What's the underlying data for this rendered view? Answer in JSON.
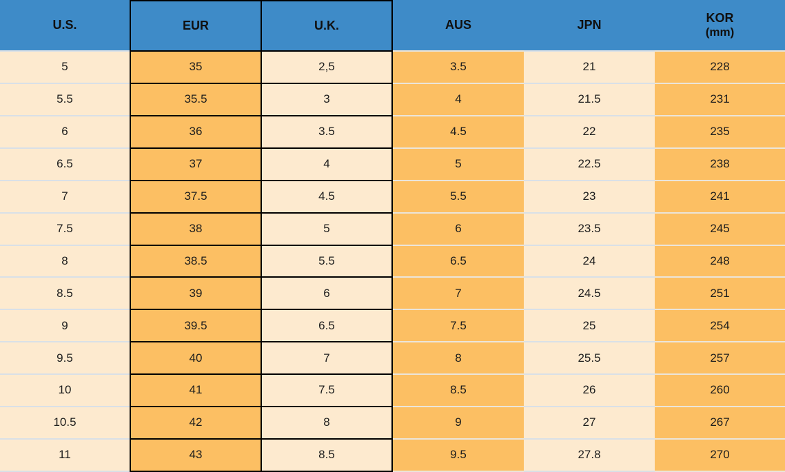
{
  "chart_data": {
    "type": "table",
    "columns": [
      {
        "label": "U.S."
      },
      {
        "label": "EUR"
      },
      {
        "label": "U.K."
      },
      {
        "label": "AUS"
      },
      {
        "label": "JPN"
      },
      {
        "label": "KOR",
        "sublabel": "(mm)"
      }
    ],
    "rows": [
      [
        "5",
        "35",
        "2,5",
        "3.5",
        "21",
        "228"
      ],
      [
        "5.5",
        "35.5",
        "3",
        "4",
        "21.5",
        "231"
      ],
      [
        "6",
        "36",
        "3.5",
        "4.5",
        "22",
        "235"
      ],
      [
        "6.5",
        "37",
        "4",
        "5",
        "22.5",
        "238"
      ],
      [
        "7",
        "37.5",
        "4.5",
        "5.5",
        "23",
        "241"
      ],
      [
        "7.5",
        "38",
        "5",
        "6",
        "23.5",
        "245"
      ],
      [
        "8",
        "38.5",
        "5.5",
        "6.5",
        "24",
        "248"
      ],
      [
        "8.5",
        "39",
        "6",
        "7",
        "24.5",
        "251"
      ],
      [
        "9",
        "39.5",
        "6.5",
        "7.5",
        "25",
        "254"
      ],
      [
        "9.5",
        "40",
        "7",
        "8",
        "25.5",
        "257"
      ],
      [
        "10",
        "41",
        "7.5",
        "8.5",
        "26",
        "260"
      ],
      [
        "10.5",
        "42",
        "8",
        "9",
        "27",
        "267"
      ],
      [
        "11",
        "43",
        "8.5",
        "9.5",
        "27.8",
        "270"
      ]
    ]
  },
  "colors": {
    "header_blue": "#3E8BC8",
    "orange": "#FCBF63",
    "cream": "#FDEACF",
    "grid_black": "#000000",
    "separator_on_cream": "#D9E0E7",
    "separator_on_orange": "#EBE5DA",
    "text": "#1D1D1D"
  }
}
